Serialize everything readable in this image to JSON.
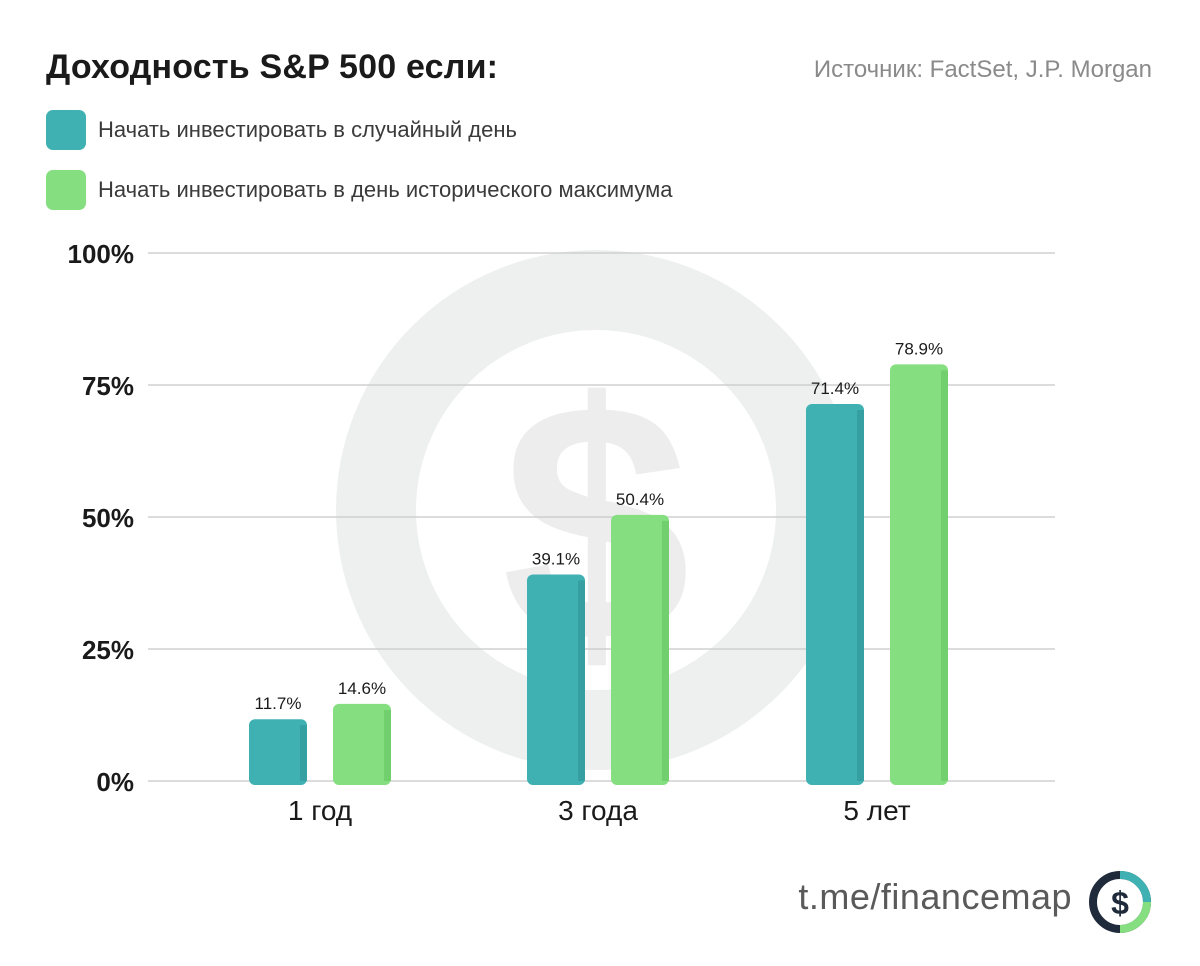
{
  "header": {
    "title": "Доходность S&P 500 если:",
    "source": "Источник: FactSet, J.P. Morgan"
  },
  "footer": {
    "link": "t.me/financemap",
    "logo_icon": "dollar-circle-icon",
    "logo_symbol": "$"
  },
  "colors": {
    "series_random": "#3fb1b3",
    "series_high": "#85df80",
    "grid": "#c8c8c8",
    "watermark": "#eceeee"
  },
  "watermark_icon": "dollar-circle-watermark-icon",
  "chart_data": {
    "type": "bar",
    "categories": [
      "1 год",
      "3 года",
      "5 лет"
    ],
    "series": [
      {
        "name": "Начать инвестировать в случайный день",
        "values": [
          11.7,
          39.1,
          71.4
        ]
      },
      {
        "name": "Начать инвестировать в день исторического максимума",
        "values": [
          14.6,
          50.4,
          78.9
        ]
      }
    ],
    "data_labels": [
      [
        "11.7%",
        "39.1%",
        "71.4%"
      ],
      [
        "14.6%",
        "50.4%",
        "78.9%"
      ]
    ],
    "yticks": [
      0,
      25,
      50,
      75,
      100
    ],
    "ytick_labels": [
      "0%",
      "25%",
      "50%",
      "75%",
      "100%"
    ],
    "ylim": [
      0,
      100
    ],
    "grid": true,
    "legend_position": "top-left",
    "xlabel": "",
    "ylabel": ""
  }
}
